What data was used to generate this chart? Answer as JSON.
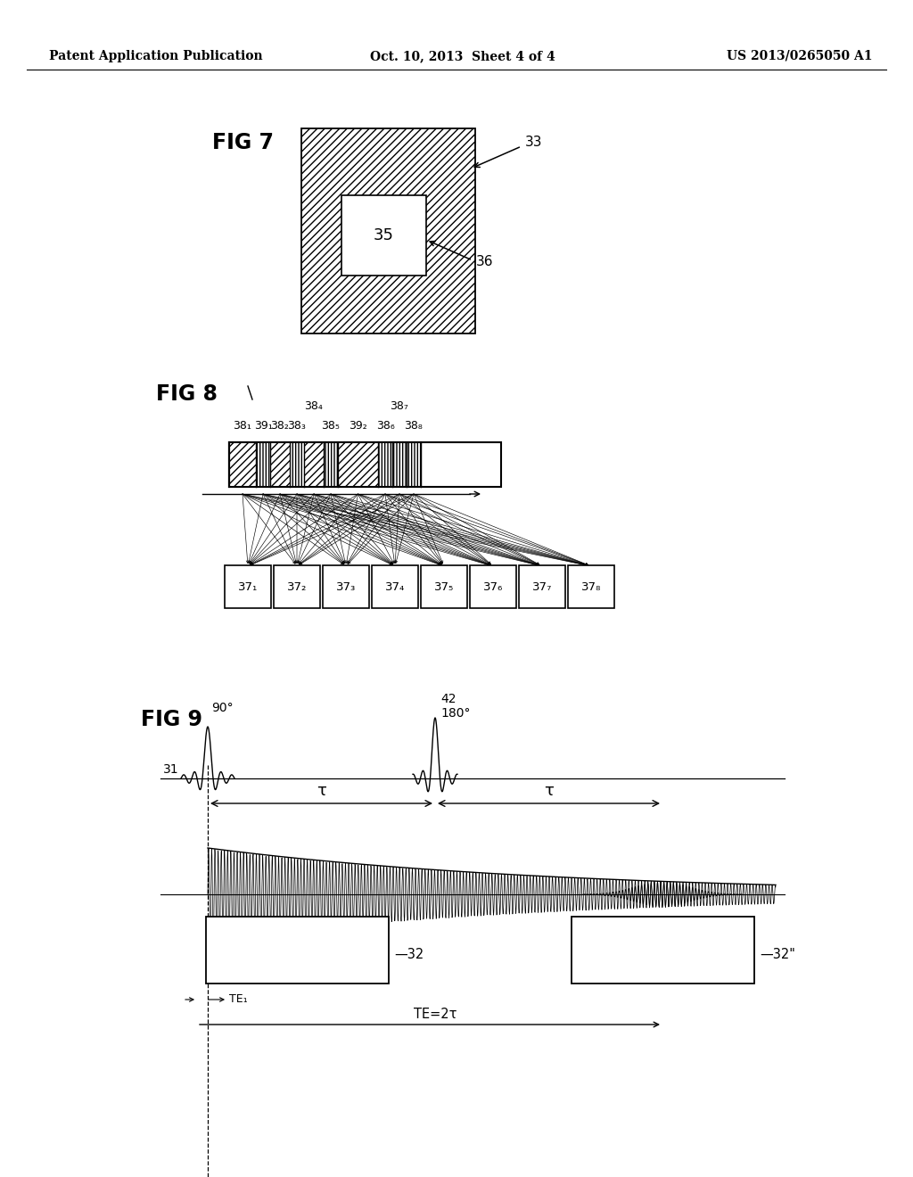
{
  "header_left": "Patent Application Publication",
  "header_center": "Oct. 10, 2013  Sheet 4 of 4",
  "header_right": "US 2013/0265050 A1",
  "fig7_label": "FIG 7",
  "fig8_label": "FIG 8",
  "fig9_label": "FIG 9",
  "label_33": "33",
  "label_35": "35",
  "label_36": "36",
  "label_31": "31",
  "label_42": "42",
  "label_32": "—32",
  "label_32pp": "—32\"",
  "angle_90": "90°",
  "angle_180": "180°",
  "tau": "τ",
  "te1": "TE₁",
  "te2": "TE=2τ",
  "box_top_labels": [
    "38₁",
    "39₁",
    "38₂",
    "38₃",
    "38₄",
    "38₅",
    "39₂",
    "38₆",
    "38₇",
    "38₈"
  ],
  "box_bot_labels": [
    "37₁",
    "37₂",
    "37₃",
    "37₄",
    "37₅",
    "37₆",
    "37₇",
    "37₈"
  ],
  "bg_color": "#ffffff"
}
